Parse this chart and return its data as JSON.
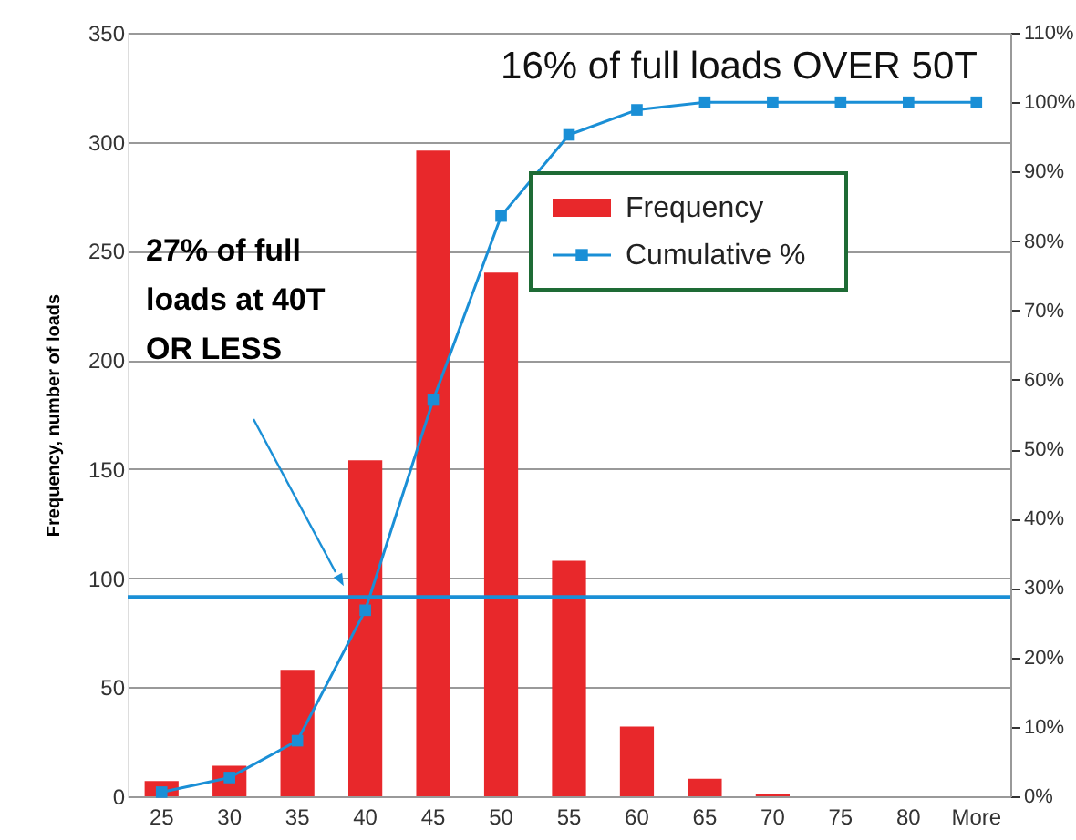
{
  "chart_data": {
    "type": "bar",
    "ylabel": "Frequency, number of loads",
    "categories": [
      "25",
      "30",
      "35",
      "40",
      "45",
      "50",
      "55",
      "60",
      "65",
      "70",
      "75",
      "80",
      "More"
    ],
    "series": [
      {
        "name": "Frequency",
        "type": "bar",
        "color": "#e8282b",
        "values": [
          7,
          14,
          58,
          154,
          296,
          240,
          108,
          32,
          8,
          1,
          0,
          0,
          0
        ]
      },
      {
        "name": "Cumulative %",
        "type": "line",
        "axis": "y2",
        "marker": "square",
        "color": "#1a8fd6",
        "values": [
          0.6,
          2.7,
          8.0,
          26.8,
          57.1,
          83.6,
          95.3,
          98.9,
          100,
          100,
          100,
          100,
          100
        ]
      }
    ],
    "ylim": [
      0,
      350
    ],
    "yticks": [
      0,
      50,
      100,
      150,
      200,
      250,
      300,
      350
    ],
    "y2lim": [
      0,
      110
    ],
    "y2ticks": [
      {
        "value": 0,
        "label": "0%"
      },
      {
        "value": 10,
        "label": "10%"
      },
      {
        "value": 20,
        "label": "20%"
      },
      {
        "value": 30,
        "label": "30%"
      },
      {
        "value": 40,
        "label": "40%"
      },
      {
        "value": 50,
        "label": "50%"
      },
      {
        "value": 60,
        "label": "60%"
      },
      {
        "value": 70,
        "label": "70%"
      },
      {
        "value": 80,
        "label": "80%"
      },
      {
        "value": 90,
        "label": "90%"
      },
      {
        "value": 100,
        "label": "100%"
      },
      {
        "value": 110,
        "label": "110%"
      }
    ],
    "ref_lines": [
      {
        "axis": "y2",
        "value": 28.7,
        "color": "#1a8fd6"
      }
    ],
    "annotations": [
      "16% of full loads OVER 50T",
      "27% of full\nloads at 40T\nOR LESS"
    ],
    "grid": "y",
    "legend": "top right"
  }
}
